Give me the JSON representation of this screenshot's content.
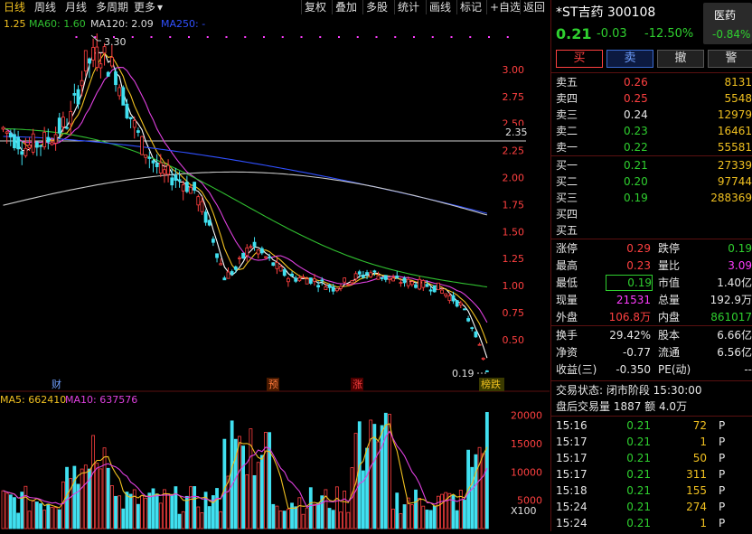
{
  "toolbar": {
    "periods": [
      "日线",
      "周线",
      "月线",
      "多周期",
      "更多"
    ],
    "more_arrow": "▾",
    "buttons": [
      "复权",
      "叠加",
      "多股",
      "统计",
      "画线",
      "标记",
      "+自选",
      "返回"
    ]
  },
  "ma_legend": {
    "ma_partial": "1.25",
    "ma60": "MA60: 1.60",
    "ma120": "MA120: 2.09",
    "ma250": "MA250: -"
  },
  "price_annotations": {
    "high": "3.30",
    "low": "0.19",
    "ref_line": "2.35"
  },
  "event_markers": [
    {
      "label": "财",
      "color": "#6fa0ff"
    },
    {
      "label": "预",
      "color": "#ff7a3c"
    },
    {
      "label": "涨",
      "color": "#ff4040"
    },
    {
      "label": "榜跌",
      "color": "#f0c020"
    }
  ],
  "volume_legend": {
    "ma5": "MA5: 662410",
    "ma10": "MA10: 637576",
    "unit": "X100"
  },
  "colors": {
    "up": "#ff4040",
    "down": "#40e0f0",
    "ma_short": "#ffffff",
    "ma_mid": "#f0c020",
    "ma_long": "#e040e0",
    "ma60": "#30c030",
    "ma120": "#3050ff",
    "ma250": "#c8c8c8"
  },
  "chart_data": {
    "type": "candlestick",
    "price_ticks": [
      "3.00",
      "2.75",
      "2.50",
      "2.25",
      "2.00",
      "1.75",
      "1.50",
      "1.25",
      "1.00",
      "0.75",
      "0.50"
    ],
    "price_range": [
      0.19,
      3.3
    ],
    "volume_ticks": [
      "20000",
      "15000",
      "10000",
      "5000"
    ],
    "volume_range": [
      0,
      22000
    ]
  },
  "stock": {
    "name": "*ST吉药 300108",
    "price": "0.21",
    "change": "-0.03",
    "change_pct": "-12.50%",
    "sector_name": "医药",
    "sector_pct": "-0.84%"
  },
  "trade_buttons": [
    "买",
    "卖",
    "撤",
    "警"
  ],
  "asks": [
    {
      "label": "卖五",
      "price": "0.26",
      "vol": "8131"
    },
    {
      "label": "卖四",
      "price": "0.25",
      "vol": "5548"
    },
    {
      "label": "卖三",
      "price": "0.24",
      "vol": "12979"
    },
    {
      "label": "卖二",
      "price": "0.23",
      "vol": "16461"
    },
    {
      "label": "卖一",
      "price": "0.22",
      "vol": "55581"
    }
  ],
  "bids": [
    {
      "label": "买一",
      "price": "0.21",
      "vol": "27339"
    },
    {
      "label": "买二",
      "price": "0.20",
      "vol": "97744"
    },
    {
      "label": "买三",
      "price": "0.19",
      "vol": "288369"
    },
    {
      "label": "买四",
      "price": "",
      "vol": ""
    },
    {
      "label": "买五",
      "price": "",
      "vol": ""
    }
  ],
  "stats": [
    {
      "l1": "涨停",
      "v1": "0.29",
      "l2": "跌停",
      "v2": "0.19"
    },
    {
      "l1": "最高",
      "v1": "0.23",
      "l2": "量比",
      "v2": "3.09"
    },
    {
      "l1": "最低",
      "v1": "0.19",
      "l2": "市值",
      "v2": "1.40亿"
    },
    {
      "l1": "现量",
      "v1": "21531",
      "l2": "总量",
      "v2": "192.9万"
    },
    {
      "l1": "外盘",
      "v1": "106.8万",
      "l2": "内盘",
      "v2": "861017"
    }
  ],
  "fundamentals": [
    {
      "l1": "换手",
      "v1": "29.42%",
      "l2": "股本",
      "v2": "6.66亿"
    },
    {
      "l1": "净资",
      "v1": "-0.77",
      "l2": "流通",
      "v2": "6.56亿"
    },
    {
      "l1": "收益(三)",
      "v1": "-0.350",
      "l2": "PE(动)",
      "v2": "--"
    }
  ],
  "trade_status": "交易状态: 闭市阶段 15:30:00",
  "after_hours": "盘后交易量 1887 额 4.0万",
  "ticks": [
    {
      "time": "15:16",
      "price": "0.21",
      "vol": "72",
      "side": "P"
    },
    {
      "time": "15:17",
      "price": "0.21",
      "vol": "1",
      "side": "P"
    },
    {
      "time": "15:17",
      "price": "0.21",
      "vol": "50",
      "side": "P"
    },
    {
      "time": "15:17",
      "price": "0.21",
      "vol": "311",
      "side": "P"
    },
    {
      "time": "15:18",
      "price": "0.21",
      "vol": "155",
      "side": "P"
    },
    {
      "time": "15:24",
      "price": "0.21",
      "vol": "274",
      "side": "P"
    },
    {
      "time": "15:24",
      "price": "0.21",
      "vol": "1",
      "side": "P"
    }
  ]
}
